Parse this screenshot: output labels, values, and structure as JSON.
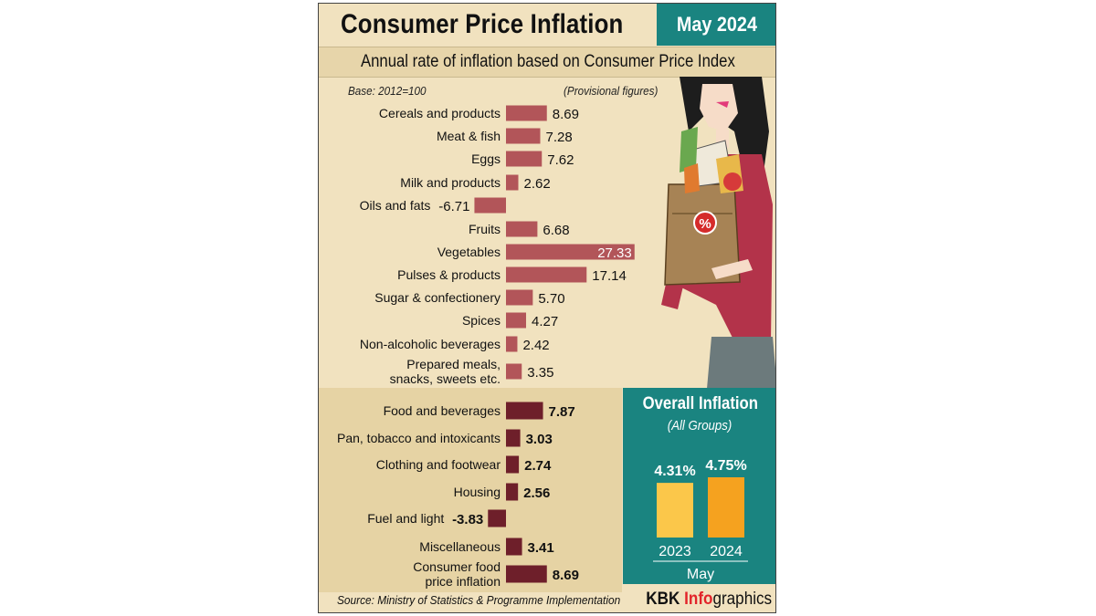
{
  "header": {
    "title": "Consumer Price Inflation",
    "date": "May 2024",
    "subtitle": "Annual rate of inflation based on Consumer Price Index"
  },
  "notes": {
    "base": "Base: 2012=100",
    "provisional": "(Provisional figures)"
  },
  "footer": {
    "source": "Source: Ministry of Statistics & Programme Implementation",
    "brand_part1": "KBK ",
    "brand_part2": "Info",
    "brand_part3": "graphics"
  },
  "colors": {
    "food_bar": "#b25559",
    "group_bar": "#6e1f2a",
    "teal": "#1a8480",
    "bar_2023": "#fbc74a",
    "bar_2024": "#f5a21f"
  },
  "chart_data": [
    {
      "type": "bar",
      "orientation": "horizontal",
      "categories": [
        "Cereals and products",
        "Meat & fish",
        "Eggs",
        "Milk and products",
        "Oils and fats",
        "Fruits",
        "Vegetables",
        "Pulses & products",
        "Sugar & confectionery",
        "Spices",
        "Non-alcoholic beverages",
        "Prepared meals, snacks, sweets etc."
      ],
      "labels": [
        "8.69",
        "7.28",
        "7.62",
        "2.62",
        "-6.71",
        "6.68",
        "27.33",
        "17.14",
        "5.70",
        "4.27",
        "2.42",
        "3.35"
      ],
      "values": [
        8.69,
        7.28,
        7.62,
        2.62,
        -6.71,
        6.68,
        27.33,
        17.14,
        5.7,
        4.27,
        2.42,
        3.35
      ]
    },
    {
      "type": "bar",
      "orientation": "horizontal",
      "categories": [
        "Food and beverages",
        "Pan, tobacco and intoxicants",
        "Clothing and footwear",
        "Housing",
        "Fuel and light",
        "Miscellaneous",
        "Consumer food price inflation"
      ],
      "labels": [
        "7.87",
        "3.03",
        "2.74",
        "2.56",
        "-3.83",
        "3.41",
        "8.69"
      ],
      "values": [
        7.87,
        3.03,
        2.74,
        2.56,
        -3.83,
        3.41,
        8.69
      ]
    },
    {
      "type": "bar",
      "title": "Overall Inflation",
      "subtitle": "(All Groups)",
      "categories": [
        "2023",
        "2024"
      ],
      "labels": [
        "4.31%",
        "4.75%"
      ],
      "values": [
        4.31,
        4.75
      ],
      "xlabel": "May"
    }
  ]
}
